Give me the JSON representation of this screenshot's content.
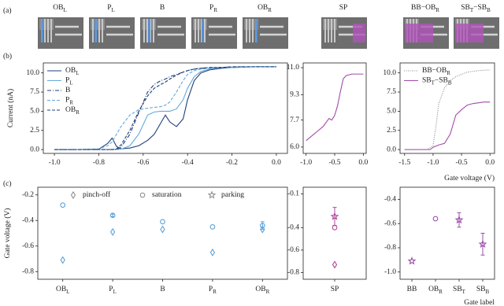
{
  "panel_labels": [
    "(a)",
    "(b)",
    "(c)"
  ],
  "images": [
    {
      "label": [
        {
          "text": "OB",
          "sub": "L"
        }
      ]
    },
    {
      "label": [
        {
          "text": "P",
          "sub": "L"
        }
      ]
    },
    {
      "label": [
        {
          "text": "B"
        }
      ]
    },
    {
      "label": [
        {
          "text": "P",
          "sub": "R"
        }
      ]
    },
    {
      "label": [
        {
          "text": "OB",
          "sub": "R"
        }
      ]
    },
    {
      "label": [
        {
          "text": "SP"
        }
      ]
    },
    {
      "label": [
        {
          "text": "BB−OB",
          "sub": "R"
        }
      ]
    },
    {
      "label": [
        {
          "text": "SB",
          "sub": "T"
        },
        {
          "text": "−SB",
          "sub": "B"
        }
      ]
    }
  ],
  "chart_data": [
    {
      "type": "line",
      "ylabel": "Current (nA)",
      "legend": true,
      "xlim": [
        -1.05,
        0.05
      ],
      "ylim": [
        -0.5,
        11.3
      ],
      "xticks": [
        {
          "value": -1,
          "label": "-1.0"
        },
        -0.8,
        -0.6,
        -0.4,
        -0.2,
        {
          "value": 0,
          "label": "0.0"
        }
      ],
      "yticks": [
        {
          "value": 0,
          "label": "0.0"
        },
        2.5,
        {
          "value": 5,
          "label": "5.0"
        },
        7.5,
        {
          "value": 10,
          "label": "10.0"
        }
      ],
      "x": [
        -1.0,
        -0.9,
        -0.8,
        -0.76,
        -0.74,
        -0.72,
        -0.7,
        -0.66,
        -0.62,
        -0.58,
        -0.55,
        -0.52,
        -0.5,
        -0.48,
        -0.45,
        -0.42,
        -0.4,
        -0.37,
        -0.34,
        -0.3,
        -0.25,
        -0.2,
        -0.1,
        0.0
      ],
      "series": [
        {
          "name_parts": [
            {
              "text": "OB",
              "sub": "L"
            }
          ],
          "color": "#1f3f7a",
          "linestyle": "solid",
          "values": [
            0,
            0,
            0.05,
            0.8,
            1.5,
            0.4,
            0.1,
            0.2,
            0.5,
            1.2,
            2.0,
            3.5,
            4.5,
            3.6,
            3.0,
            4.0,
            6.5,
            9.0,
            10.0,
            10.4,
            10.6,
            10.7,
            10.8,
            10.8
          ]
        },
        {
          "name_parts": [
            {
              "text": "P",
              "sub": "L"
            }
          ],
          "color": "#62a9dc",
          "linestyle": "solid",
          "values": [
            0,
            0,
            0,
            0,
            0,
            0,
            0.05,
            0.5,
            2.0,
            4.5,
            4.9,
            5.0,
            5.0,
            5.0,
            5.3,
            6.5,
            8.0,
            9.5,
            10.2,
            10.5,
            10.7,
            10.7,
            10.8,
            10.8
          ]
        },
        {
          "name_parts": [
            {
              "text": "B"
            }
          ],
          "color": "#1f3f7a",
          "linestyle": "dashdot",
          "values": [
            0,
            0,
            0,
            0,
            0,
            0,
            0.3,
            2.0,
            4.8,
            7.5,
            8.5,
            9.0,
            9.2,
            9.5,
            9.8,
            10.1,
            10.3,
            10.5,
            10.6,
            10.7,
            10.7,
            10.8,
            10.8,
            10.8
          ]
        },
        {
          "name_parts": [
            {
              "text": "P",
              "sub": "R"
            }
          ],
          "color": "#62a9dc",
          "linestyle": "dashed",
          "values": [
            0,
            0,
            0.1,
            0.5,
            1.0,
            2.0,
            3.0,
            4.5,
            5.2,
            5.4,
            5.5,
            5.6,
            5.8,
            6.2,
            7.5,
            9.0,
            9.8,
            10.3,
            10.5,
            10.6,
            10.7,
            10.7,
            10.8,
            10.8
          ]
        },
        {
          "name_parts": [
            {
              "text": "OB",
              "sub": "R"
            }
          ],
          "color": "#1f3f7a",
          "linestyle": "dashed",
          "values": [
            0,
            0,
            0,
            0,
            0,
            0.1,
            0.6,
            2.5,
            5.0,
            7.0,
            8.0,
            8.5,
            8.8,
            9.2,
            9.7,
            10.1,
            10.3,
            10.5,
            10.6,
            10.7,
            10.7,
            10.8,
            10.8,
            10.8
          ]
        }
      ]
    },
    {
      "type": "line",
      "legend": false,
      "xlim": [
        -1.05,
        0.05
      ],
      "ylim": [
        5.6,
        11.3
      ],
      "xticks": [
        {
          "value": -1,
          "label": "-1.0"
        },
        -0.5,
        {
          "value": 0,
          "label": "0.0"
        }
      ],
      "yticks": [
        {
          "value": 6,
          "label": "6.0"
        },
        7.7,
        9.3,
        {
          "value": 11,
          "label": "11.0"
        }
      ],
      "x": [
        -1.0,
        -0.9,
        -0.8,
        -0.7,
        -0.6,
        -0.55,
        -0.5,
        -0.45,
        -0.4,
        -0.35,
        -0.3,
        -0.2,
        0.0
      ],
      "series": [
        {
          "name_parts": [
            {
              "text": "SP"
            }
          ],
          "color": "#a04ca8",
          "linestyle": "solid",
          "values": [
            6.4,
            6.7,
            7.0,
            7.3,
            7.8,
            7.7,
            8.0,
            8.6,
            9.5,
            10.3,
            10.5,
            10.6,
            10.6
          ]
        }
      ]
    },
    {
      "type": "line",
      "legend": true,
      "xlabel": "Gate voltage (V)",
      "xlim": [
        -1.58,
        0.08
      ],
      "ylim": [
        -0.5,
        11.3
      ],
      "xticks": [
        -1.5,
        {
          "value": -1,
          "label": "-1.0"
        },
        -0.5,
        {
          "value": 0,
          "label": "0.0"
        }
      ],
      "yticks": [
        {
          "value": 0,
          "label": "0.0"
        },
        2.5,
        {
          "value": 5,
          "label": "5.0"
        },
        7.5,
        {
          "value": 10,
          "label": "10.0"
        }
      ],
      "series": [
        {
          "name_parts": [
            {
              "text": "BB−OB",
              "sub": "R"
            }
          ],
          "color": "#8a8a8a",
          "linestyle": "dotted",
          "x": [
            -1.5,
            -1.1,
            -1.0,
            -0.95,
            -0.9,
            -0.8,
            -0.7,
            -0.6,
            -0.4,
            -0.2,
            0.0
          ],
          "values": [
            0,
            0,
            0.5,
            3.0,
            6.0,
            8.0,
            9.0,
            9.5,
            10.1,
            10.3,
            10.4
          ]
        },
        {
          "name_parts": [
            {
              "text": "SB",
              "sub": "T"
            },
            {
              "text": "−SB",
              "sub": "B"
            }
          ],
          "color": "#a04ca8",
          "linestyle": "solid",
          "x": [
            -1.5,
            -1.05,
            -1.0,
            -0.9,
            -0.8,
            -0.7,
            -0.6,
            -0.5,
            -0.4,
            -0.3,
            -0.1,
            0.0
          ],
          "values": [
            0,
            0,
            0.3,
            0.6,
            0.8,
            2.0,
            4.5,
            5.2,
            5.8,
            6.0,
            6.2,
            6.2
          ]
        }
      ]
    },
    {
      "type": "scatter",
      "ylabel": "Gate voltage (V)",
      "legend": true,
      "color": "#5aa0d8",
      "ylim": [
        -0.86,
        -0.14
      ],
      "yticks": [
        -0.2,
        -0.4,
        -0.6,
        -0.8
      ],
      "categories": [
        [
          {
            "text": "OB",
            "sub": "L"
          }
        ],
        [
          {
            "text": "P",
            "sub": "L"
          }
        ],
        [
          {
            "text": "B"
          }
        ],
        [
          {
            "text": "P",
            "sub": "R"
          }
        ],
        [
          {
            "text": "OB",
            "sub": "R"
          }
        ]
      ],
      "series": [
        {
          "name": "pinch-off",
          "marker": "diamond",
          "values": [
            -0.71,
            -0.49,
            -0.47,
            -0.65,
            -0.47
          ],
          "errors": [
            null,
            null,
            null,
            null,
            null
          ]
        },
        {
          "name": "saturation",
          "marker": "circle",
          "values": [
            -0.28,
            -0.36,
            -0.41,
            -0.45,
            -0.44
          ],
          "errors": [
            null,
            0.01,
            null,
            null,
            0.03
          ]
        },
        {
          "name": "parking",
          "marker": "star",
          "values": [
            null,
            null,
            null,
            null,
            null
          ],
          "errors": [
            null,
            null,
            null,
            null,
            null
          ]
        }
      ]
    },
    {
      "type": "scatter",
      "legend": false,
      "color": "#b0479c",
      "ylim": [
        -0.86,
        -0.04
      ],
      "yticks": [
        -0.1,
        -0.4,
        -0.6,
        -0.8
      ],
      "categories": [
        [
          {
            "text": "SP"
          }
        ]
      ],
      "series": [
        {
          "name": "pinch-off",
          "marker": "diamond",
          "values": [
            -0.73
          ],
          "errors": [
            null
          ]
        },
        {
          "name": "saturation",
          "marker": "circle",
          "values": [
            -0.4
          ],
          "errors": [
            null
          ]
        },
        {
          "name": "parking",
          "marker": "star",
          "values": [
            -0.3
          ],
          "errors": [
            0.08
          ]
        }
      ]
    },
    {
      "type": "scatter",
      "legend": false,
      "color": "#9a50a8",
      "xlabel": "Gate label",
      "ylim": [
        -1.06,
        -0.3
      ],
      "yticks": [
        -0.4,
        -0.6,
        -0.8,
        {
          "value": -1,
          "label": "-1.0"
        }
      ],
      "categories": [
        [
          {
            "text": "BB"
          }
        ],
        [
          {
            "text": "OB",
            "sub": "R"
          }
        ],
        [
          {
            "text": "SB",
            "sub": "T"
          }
        ],
        [
          {
            "text": "SB",
            "sub": "B"
          }
        ]
      ],
      "series": [
        {
          "name": "saturation",
          "marker": "circle",
          "values": [
            null,
            -0.56,
            null,
            null
          ],
          "errors": [
            null,
            null,
            null,
            null
          ]
        },
        {
          "name": "parking",
          "marker": "star",
          "values": [
            -0.91,
            null,
            -0.57,
            -0.77
          ],
          "errors": [
            null,
            null,
            0.06,
            0.09
          ]
        }
      ]
    }
  ]
}
